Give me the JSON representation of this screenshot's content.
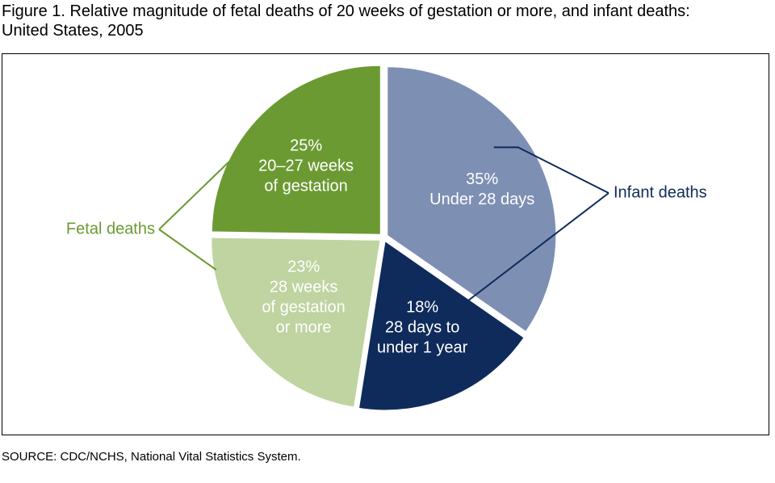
{
  "title": {
    "line1": "Figure 1.  Relative magnitude of fetal deaths of 20 weeks of gestation or more, and infant deaths:",
    "line2": "United States, 2005"
  },
  "source": "SOURCE: CDC/NCHS, National Vital Statistics System.",
  "colors": {
    "fetal_early": "#6b9a32",
    "fetal_late": "#bfd4a0",
    "infant_neonatal": "#7d8fb3",
    "infant_postneonatal": "#0f2b5b",
    "fetal_label": "#6b9a32",
    "infant_label": "#0f2b5b"
  },
  "chart_data": {
    "type": "pie",
    "title": "Relative magnitude of fetal deaths of 20 weeks of gestation or more, and infant deaths: United States, 2005",
    "slices": [
      {
        "value": 35,
        "label_pct": "35%",
        "label_lines": [
          "Under 28 days"
        ],
        "group": "Infant deaths",
        "color_key": "infant_neonatal"
      },
      {
        "value": 18,
        "label_pct": "18%",
        "label_lines": [
          "28 days to",
          "under 1 year"
        ],
        "group": "Infant deaths",
        "color_key": "infant_postneonatal"
      },
      {
        "value": 23,
        "label_pct": "23%",
        "label_lines": [
          "28 weeks",
          "of gestation",
          "or more"
        ],
        "group": "Fetal deaths",
        "color_key": "fetal_late"
      },
      {
        "value": 25,
        "label_pct": "25%",
        "label_lines": [
          "20–27 weeks",
          "of gestation"
        ],
        "group": "Fetal deaths",
        "color_key": "fetal_early"
      }
    ],
    "groups": [
      {
        "name": "Infant deaths",
        "color_key": "infant_label"
      },
      {
        "name": "Fetal deaths",
        "color_key": "fetal_label"
      }
    ]
  }
}
